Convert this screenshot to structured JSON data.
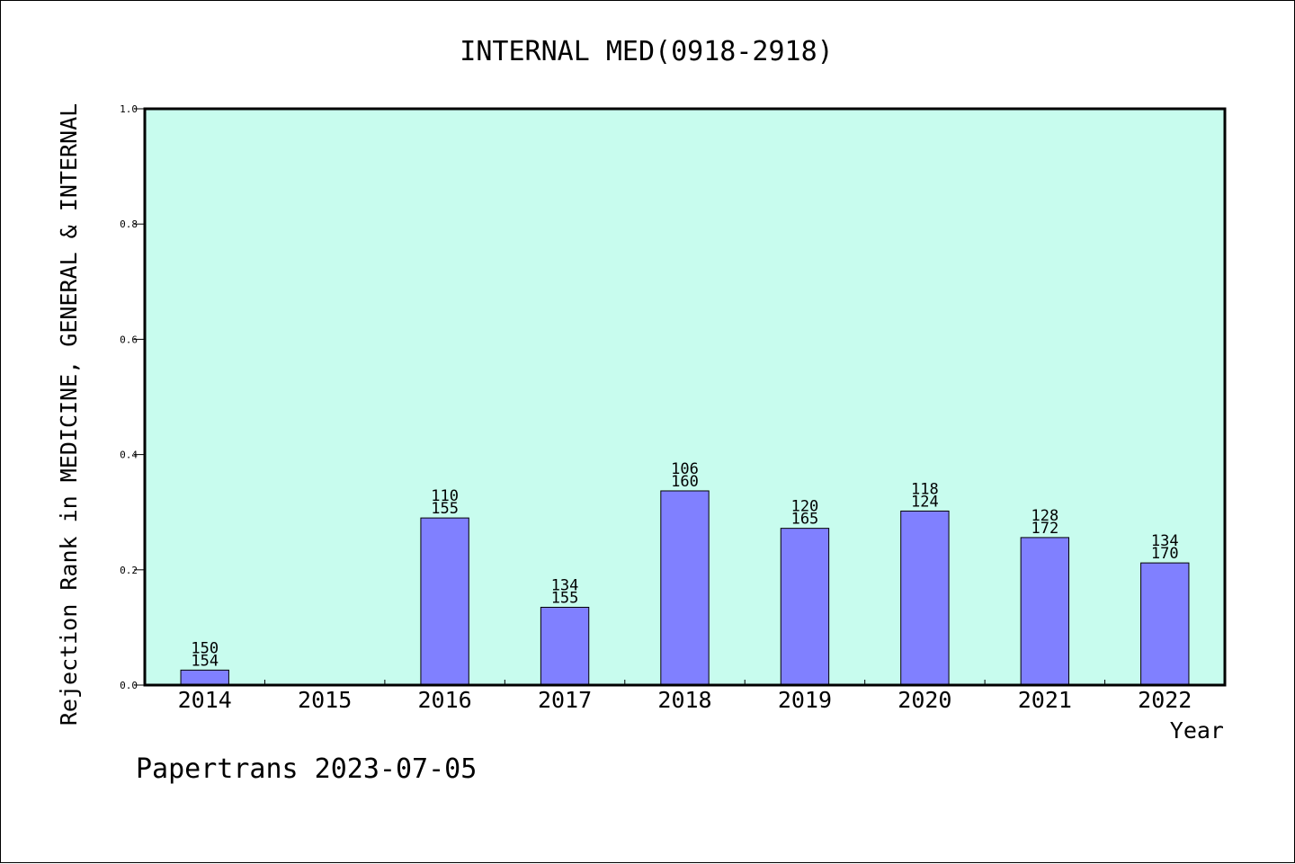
{
  "footer": {
    "credit": "Papertrans 2023-07-05"
  },
  "chart_data": {
    "type": "bar",
    "title": "INTERNAL MED(0918-2918)",
    "xlabel": "Year",
    "ylabel": "Rejection Rank in MEDICINE, GENERAL & INTERNAL",
    "ylim": [
      0,
      1.0
    ],
    "yticks": [
      "0.0",
      "0.2",
      "0.4",
      "0.6",
      "0.8",
      "1.0"
    ],
    "grid": false,
    "categories": [
      "2014",
      "2015",
      "2016",
      "2017",
      "2018",
      "2019",
      "2020",
      "2021",
      "2022"
    ],
    "values": [
      0.026,
      null,
      0.29,
      0.135,
      0.337,
      0.272,
      0.302,
      0.256,
      0.212
    ],
    "labels_top": [
      "150",
      "",
      "110",
      "134",
      "106",
      "120",
      "118",
      "128",
      "134"
    ],
    "labels_bottom": [
      "154",
      "",
      "155",
      "155",
      "160",
      "165",
      "124",
      "172",
      "170"
    ],
    "colors": {
      "plot_bg": "#c8fcee",
      "bar": "#8080ff",
      "axis": "#000000"
    }
  }
}
